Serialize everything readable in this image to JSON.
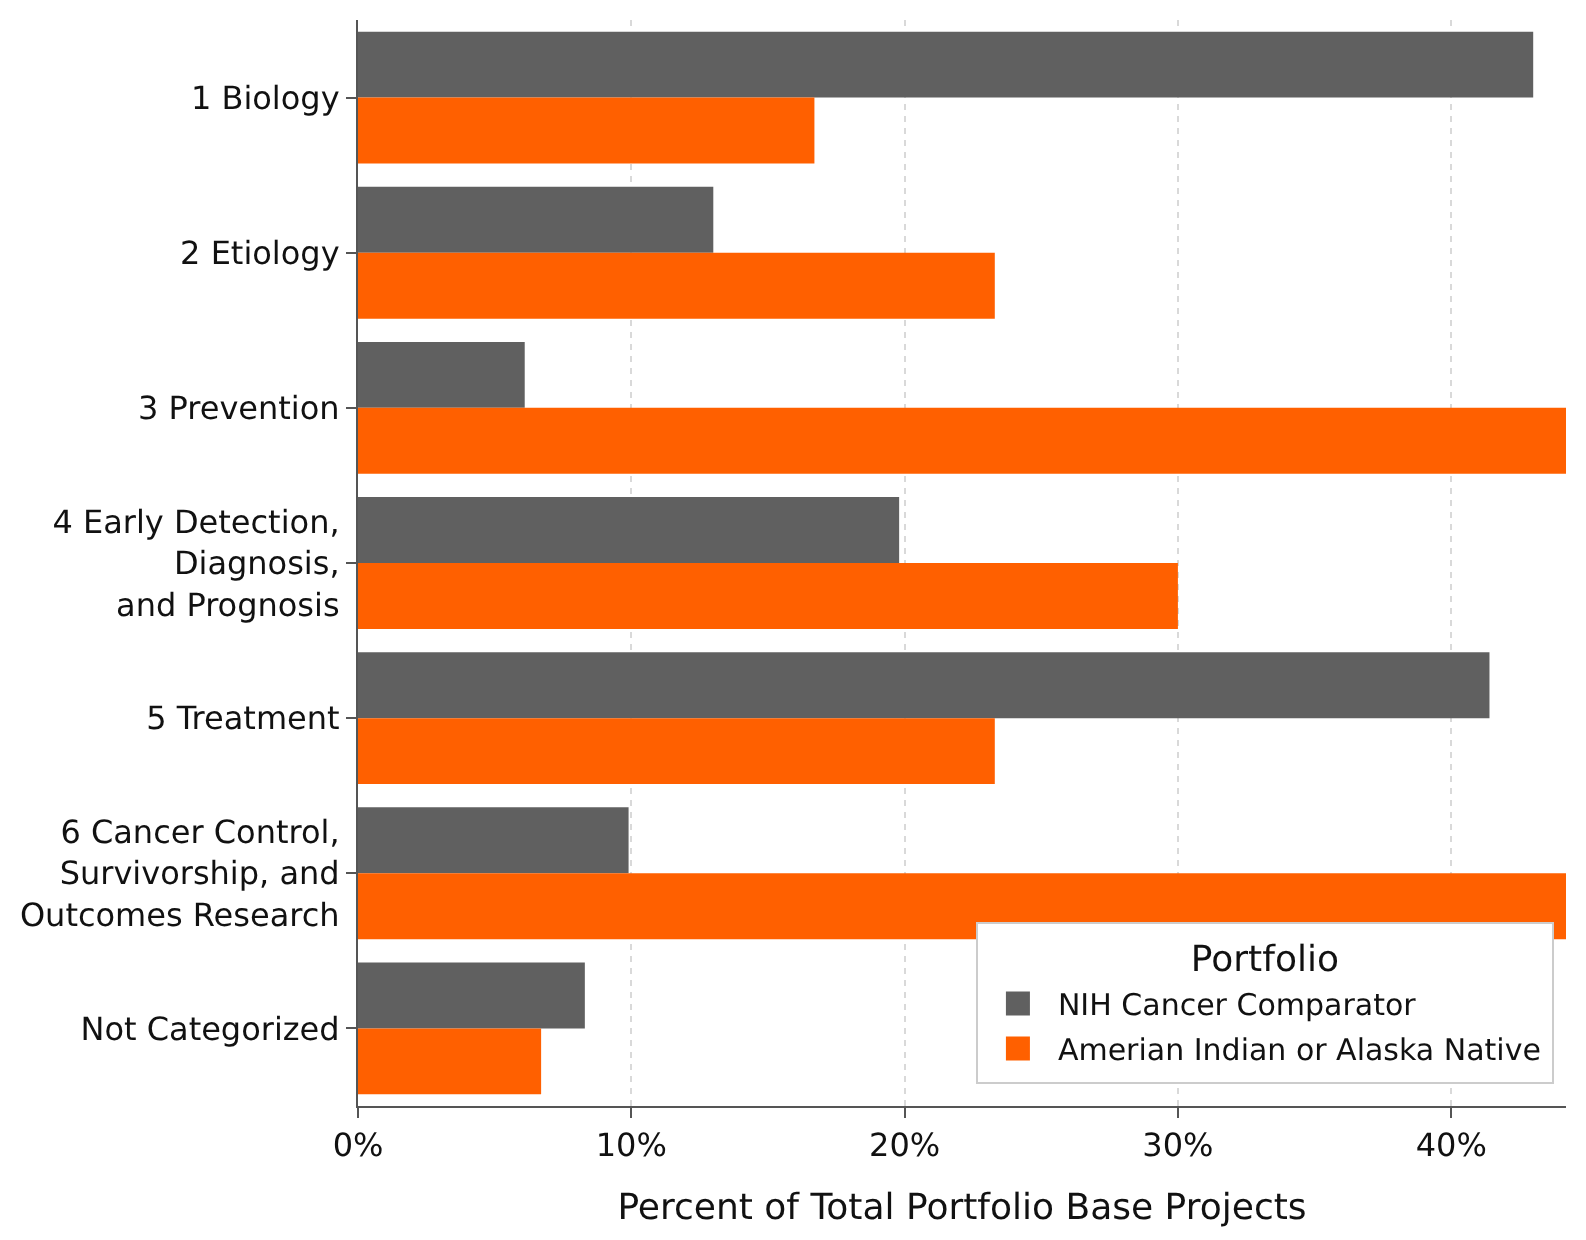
{
  "chart_data": {
    "type": "bar",
    "orientation": "horizontal",
    "categories": [
      "1 Biology",
      "2 Etiology",
      "3 Prevention",
      "4 Early Detection,\nDiagnosis,\nand Prognosis",
      "5 Treatment",
      "6 Cancer Control,\nSurvivorship, and\nOutcomes Research",
      "Not Categorized"
    ],
    "series": [
      {
        "name": "NIH Cancer Comparator",
        "color": "#606060",
        "values": [
          43.0,
          13.0,
          6.1,
          19.8,
          41.4,
          9.9,
          8.3
        ]
      },
      {
        "name": "Amerian Indian or Alaska Native",
        "color": "#ff6000",
        "values": [
          16.7,
          23.3,
          44.2,
          30.0,
          23.3,
          44.2,
          6.7
        ]
      }
    ],
    "xlabel": "Percent of Total Portfolio Base Projects",
    "xlim": [
      0,
      44.2
    ],
    "xticks": [
      {
        "value": 0,
        "label": "0%"
      },
      {
        "value": 10,
        "label": "10%"
      },
      {
        "value": 20,
        "label": "20%"
      },
      {
        "value": 30,
        "label": "30%"
      },
      {
        "value": 40,
        "label": "40%"
      }
    ],
    "legend_title": "Portfolio",
    "legend": "bottom right",
    "grid": "x"
  }
}
